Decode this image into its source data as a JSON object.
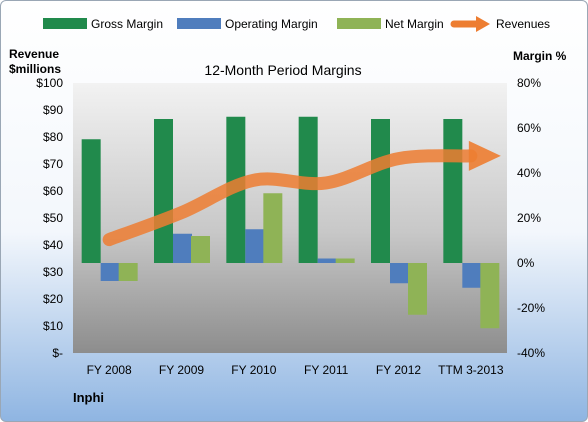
{
  "chart_data": {
    "type": "bar",
    "title": "12-Month Period Margins",
    "company": "Inphi",
    "left_axis_label_line1": "Revenue",
    "left_axis_label_line2": "$millions",
    "right_axis_label": "Margin %",
    "categories": [
      "FY 2008",
      "FY 2009",
      "FY 2010",
      "FY 2011",
      "FY 2012",
      "TTM 3-2013"
    ],
    "left_ylim": [
      0,
      100
    ],
    "left_ticks": [
      "$-",
      "$10",
      "$20",
      "$30",
      "$40",
      "$50",
      "$60",
      "$70",
      "$80",
      "$90",
      "$100"
    ],
    "right_ylim": [
      -40,
      80
    ],
    "right_ticks": [
      "-40%",
      "-20%",
      "0%",
      "20%",
      "40%",
      "60%",
      "80%"
    ],
    "series": [
      {
        "name": "Gross Margin",
        "axis": "right",
        "kind": "bar",
        "color": "#218a4c",
        "values": [
          55,
          64,
          65,
          65,
          64,
          64
        ]
      },
      {
        "name": "Operating Margin",
        "axis": "right",
        "kind": "bar",
        "color": "#4f7dbd",
        "values": [
          -8,
          13,
          15,
          2,
          -9,
          -11
        ]
      },
      {
        "name": "Net Margin",
        "axis": "right",
        "kind": "bar",
        "color": "#8fb356",
        "values": [
          -8,
          12,
          31,
          2,
          -23,
          -29
        ]
      },
      {
        "name": "Revenues",
        "axis": "left",
        "kind": "arrow-line",
        "color": "#ed7d31",
        "values": [
          42,
          52,
          64,
          63,
          72,
          73
        ]
      }
    ],
    "grid": false,
    "legend_position": "top"
  }
}
